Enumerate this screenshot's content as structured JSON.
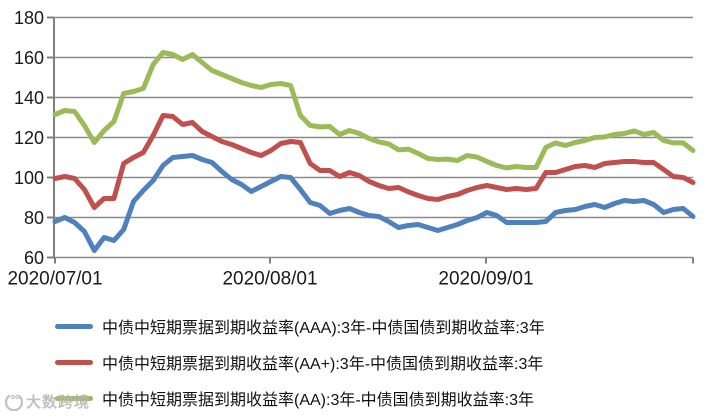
{
  "watermark": {
    "text": "大数跨境"
  },
  "chart_data": {
    "type": "line",
    "title": "",
    "xlabel": "",
    "ylabel": "",
    "ylim": [
      60,
      180
    ],
    "y_ticks": [
      60,
      80,
      100,
      120,
      140,
      160,
      180
    ],
    "x_ticks": [
      {
        "label": "2020/07/01",
        "frac": 0.0
      },
      {
        "label": "2020/08/01",
        "frac": 0.337
      },
      {
        "label": "2020/09/01",
        "frac": 0.6755
      },
      {
        "label": "",
        "frac": 1.0
      }
    ],
    "grid": "horizontal-only",
    "legend_position": "bottom-left",
    "axis_color": "#7f7f7f",
    "gridline_color": "#8b8b8b",
    "tick_label_color": "#1a1a1a",
    "x": [
      "2020/07/01",
      "2020/07/02",
      "2020/07/03",
      "2020/07/06",
      "2020/07/07",
      "2020/07/08",
      "2020/07/09",
      "2020/07/10",
      "2020/07/13",
      "2020/07/14",
      "2020/07/15",
      "2020/07/16",
      "2020/07/17",
      "2020/07/20",
      "2020/07/21",
      "2020/07/22",
      "2020/07/23",
      "2020/07/24",
      "2020/07/27",
      "2020/07/28",
      "2020/07/29",
      "2020/07/30",
      "2020/07/31",
      "2020/08/03",
      "2020/08/04",
      "2020/08/05",
      "2020/08/06",
      "2020/08/07",
      "2020/08/10",
      "2020/08/11",
      "2020/08/12",
      "2020/08/13",
      "2020/08/14",
      "2020/08/17",
      "2020/08/18",
      "2020/08/19",
      "2020/08/20",
      "2020/08/21",
      "2020/08/24",
      "2020/08/25",
      "2020/08/26",
      "2020/08/27",
      "2020/08/28",
      "2020/08/31",
      "2020/09/01",
      "2020/09/02",
      "2020/09/03",
      "2020/09/04",
      "2020/09/07",
      "2020/09/08",
      "2020/09/09",
      "2020/09/10",
      "2020/09/11",
      "2020/09/14",
      "2020/09/15",
      "2020/09/16",
      "2020/09/17",
      "2020/09/18",
      "2020/09/21",
      "2020/09/22",
      "2020/09/23",
      "2020/09/24",
      "2020/09/25",
      "2020/09/28",
      "2020/09/29",
      "2020/09/30"
    ],
    "series": [
      {
        "key": "aaa",
        "name": "中债中短期票据到期收益率(AAA):3年-中债国债到期收益率:3年",
        "color": "#4F81BD",
        "values": [
          78,
          80,
          77.5,
          73,
          63.5,
          70,
          68.5,
          74,
          88,
          93.5,
          98.5,
          106,
          110,
          110.5,
          111,
          109,
          107.5,
          103,
          99,
          96.5,
          93,
          95.5,
          98,
          100.5,
          100,
          94,
          87.5,
          86,
          82,
          83.5,
          84.5,
          82.5,
          81,
          80.5,
          78,
          75,
          76,
          76.5,
          75,
          73.5,
          75,
          76.5,
          78.5,
          80,
          82.5,
          81,
          77.5,
          77.5,
          77.5,
          77.5,
          78,
          82.5,
          83.5,
          84,
          85.5,
          86.5,
          85,
          87,
          88.5,
          88,
          88.5,
          86.5,
          82.5,
          84,
          84.5,
          80.5
        ]
      },
      {
        "key": "aa-plus",
        "name": "中债中短期票据到期收益率(AA+):3年-中债国债到期收益率:3年",
        "color": "#C0504D",
        "values": [
          99.5,
          100.5,
          99.5,
          94,
          85,
          89.5,
          89.5,
          107,
          110,
          112.5,
          121,
          131,
          130.5,
          126.5,
          127.5,
          123,
          120.5,
          118,
          116.5,
          114.5,
          112.5,
          111,
          113.5,
          117,
          118,
          117.5,
          107,
          103.5,
          103.5,
          100.5,
          102.5,
          101,
          98,
          96,
          94.5,
          95,
          92.8,
          91,
          89.5,
          89,
          90.5,
          91.5,
          93.5,
          95,
          96,
          95,
          94,
          94.5,
          94,
          94.5,
          102.5,
          102.5,
          104,
          105.5,
          106,
          105,
          107,
          107.5,
          108,
          108,
          107.5,
          107.5,
          104,
          100.5,
          100,
          97.5
        ]
      },
      {
        "key": "aa",
        "name": "中债中短期票据到期收益率(AA):3年-中债国债到期收益率:3年",
        "color": "#9BBB59",
        "values": [
          131.5,
          133.5,
          133,
          126,
          117.5,
          123.5,
          128,
          142,
          143,
          144.5,
          156.5,
          162.5,
          161.5,
          159,
          161.5,
          157.5,
          153.5,
          151.5,
          149.5,
          147.5,
          146,
          145,
          146.5,
          147,
          146,
          131,
          126,
          125.3,
          125.5,
          121.5,
          123.5,
          122,
          119.5,
          117.8,
          116.8,
          113.8,
          114.2,
          112,
          109.5,
          109,
          109.2,
          108.5,
          111,
          110.2,
          108,
          106,
          104.8,
          105.5,
          105,
          105,
          115,
          117.3,
          116,
          117.5,
          118.5,
          120,
          120.3,
          121.5,
          122,
          123.3,
          121.5,
          122.5,
          118.5,
          117.3,
          117.3,
          113.5
        ]
      }
    ]
  }
}
